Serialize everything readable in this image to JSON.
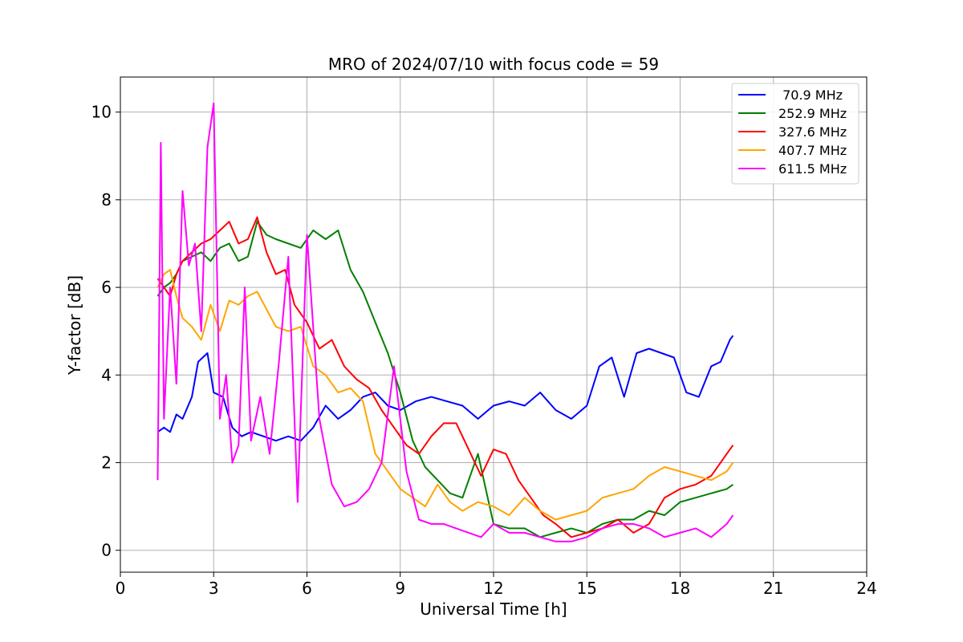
{
  "chart_data": {
    "type": "line",
    "title": "MRO of 2024/07/10 with focus code = 59",
    "xlabel": "Universal Time [h]",
    "ylabel": "Y-factor [dB]",
    "xlim": [
      0,
      24
    ],
    "ylim": [
      -0.5,
      10.8
    ],
    "xticks": [
      0,
      3,
      6,
      9,
      12,
      15,
      18,
      21,
      24
    ],
    "yticks": [
      0,
      2,
      4,
      6,
      8,
      10
    ],
    "grid": true,
    "legend": "top-right",
    "series": [
      {
        "name": " 70.9 MHz",
        "color": "#0000ff",
        "x": [
          1.2,
          1.4,
          1.6,
          1.8,
          2.0,
          2.3,
          2.5,
          2.8,
          3.0,
          3.3,
          3.6,
          3.9,
          4.2,
          4.6,
          5.0,
          5.4,
          5.8,
          6.2,
          6.6,
          7.0,
          7.4,
          7.8,
          8.2,
          8.6,
          9.0,
          9.5,
          10.0,
          10.5,
          11.0,
          11.5,
          12.0,
          12.5,
          13.0,
          13.5,
          14.0,
          14.5,
          15.0,
          15.4,
          15.8,
          16.2,
          16.6,
          17.0,
          17.4,
          17.8,
          18.2,
          18.6,
          19.0,
          19.3,
          19.6,
          19.7
        ],
        "y": [
          2.7,
          2.8,
          2.7,
          3.1,
          3.0,
          3.5,
          4.3,
          4.5,
          3.6,
          3.5,
          2.8,
          2.6,
          2.7,
          2.6,
          2.5,
          2.6,
          2.5,
          2.8,
          3.3,
          3.0,
          3.2,
          3.5,
          3.6,
          3.3,
          3.2,
          3.4,
          3.5,
          3.4,
          3.3,
          3.0,
          3.3,
          3.4,
          3.3,
          3.6,
          3.2,
          3.0,
          3.3,
          4.2,
          4.4,
          3.5,
          4.5,
          4.6,
          4.5,
          4.4,
          3.6,
          3.5,
          4.2,
          4.3,
          4.8,
          4.9
        ]
      },
      {
        "name": "252.9 MHz",
        "color": "#008000",
        "x": [
          1.2,
          1.4,
          1.6,
          1.8,
          2.0,
          2.3,
          2.6,
          2.9,
          3.2,
          3.5,
          3.8,
          4.1,
          4.4,
          4.7,
          5.0,
          5.4,
          5.8,
          6.2,
          6.6,
          7.0,
          7.4,
          7.8,
          8.2,
          8.6,
          9.0,
          9.4,
          9.8,
          10.2,
          10.6,
          11.0,
          11.5,
          12.0,
          12.5,
          13.0,
          13.5,
          14.0,
          14.5,
          15.0,
          15.5,
          16.0,
          16.5,
          17.0,
          17.5,
          18.0,
          18.5,
          19.0,
          19.5,
          19.7
        ],
        "y": [
          5.8,
          6.0,
          6.1,
          6.3,
          6.6,
          6.7,
          6.8,
          6.6,
          6.9,
          7.0,
          6.6,
          6.7,
          7.5,
          7.2,
          7.1,
          7.0,
          6.9,
          7.3,
          7.1,
          7.3,
          6.4,
          5.9,
          5.2,
          4.5,
          3.6,
          2.5,
          1.9,
          1.6,
          1.3,
          1.2,
          2.2,
          0.6,
          0.5,
          0.5,
          0.3,
          0.4,
          0.5,
          0.4,
          0.6,
          0.7,
          0.7,
          0.9,
          0.8,
          1.1,
          1.2,
          1.3,
          1.4,
          1.5
        ]
      },
      {
        "name": "327.6 MHz",
        "color": "#ff0000",
        "x": [
          1.2,
          1.4,
          1.6,
          1.8,
          2.0,
          2.3,
          2.6,
          2.9,
          3.2,
          3.5,
          3.8,
          4.1,
          4.4,
          4.7,
          5.0,
          5.3,
          5.6,
          6.0,
          6.4,
          6.8,
          7.2,
          7.6,
          8.0,
          8.4,
          8.8,
          9.2,
          9.6,
          10.0,
          10.4,
          10.8,
          11.2,
          11.6,
          12.0,
          12.4,
          12.8,
          13.2,
          13.6,
          14.0,
          14.5,
          15.0,
          15.5,
          16.0,
          16.5,
          17.0,
          17.5,
          18.0,
          18.5,
          19.0,
          19.5,
          19.7
        ],
        "y": [
          6.2,
          6.0,
          5.8,
          6.3,
          6.6,
          6.8,
          7.0,
          7.1,
          7.3,
          7.5,
          7.0,
          7.1,
          7.6,
          6.8,
          6.3,
          6.4,
          5.6,
          5.2,
          4.6,
          4.8,
          4.2,
          3.9,
          3.7,
          3.2,
          2.8,
          2.4,
          2.2,
          2.6,
          2.9,
          2.9,
          2.3,
          1.7,
          2.3,
          2.2,
          1.6,
          1.2,
          0.8,
          0.6,
          0.3,
          0.4,
          0.5,
          0.7,
          0.4,
          0.6,
          1.2,
          1.4,
          1.5,
          1.7,
          2.2,
          2.4
        ]
      },
      {
        "name": "407.7 MHz",
        "color": "#ffa500",
        "x": [
          1.2,
          1.4,
          1.6,
          1.8,
          2.0,
          2.3,
          2.6,
          2.9,
          3.2,
          3.5,
          3.8,
          4.1,
          4.4,
          4.7,
          5.0,
          5.4,
          5.8,
          6.2,
          6.6,
          7.0,
          7.4,
          7.8,
          8.2,
          8.6,
          9.0,
          9.4,
          9.8,
          10.2,
          10.6,
          11.0,
          11.5,
          12.0,
          12.5,
          13.0,
          13.5,
          14.0,
          14.5,
          15.0,
          15.5,
          16.0,
          16.5,
          17.0,
          17.5,
          18.0,
          18.5,
          19.0,
          19.5,
          19.7
        ],
        "y": [
          6.0,
          6.3,
          6.4,
          5.8,
          5.3,
          5.1,
          4.8,
          5.6,
          5.0,
          5.7,
          5.6,
          5.8,
          5.9,
          5.5,
          5.1,
          5.0,
          5.1,
          4.2,
          4.0,
          3.6,
          3.7,
          3.4,
          2.2,
          1.8,
          1.4,
          1.2,
          1.0,
          1.5,
          1.1,
          0.9,
          1.1,
          1.0,
          0.8,
          1.2,
          0.9,
          0.7,
          0.8,
          0.9,
          1.2,
          1.3,
          1.4,
          1.7,
          1.9,
          1.8,
          1.7,
          1.6,
          1.8,
          2.0
        ]
      },
      {
        "name": "611.5 MHz",
        "color": "#ff00ff",
        "x": [
          1.2,
          1.3,
          1.4,
          1.6,
          1.8,
          2.0,
          2.2,
          2.4,
          2.6,
          2.8,
          3.0,
          3.2,
          3.4,
          3.6,
          3.8,
          4.0,
          4.2,
          4.5,
          4.8,
          5.1,
          5.4,
          5.7,
          6.0,
          6.4,
          6.8,
          7.2,
          7.6,
          8.0,
          8.4,
          8.8,
          9.2,
          9.6,
          10.0,
          10.4,
          10.8,
          11.2,
          11.6,
          12.0,
          12.5,
          13.0,
          13.5,
          14.0,
          14.5,
          15.0,
          15.5,
          16.0,
          16.5,
          17.0,
          17.5,
          18.0,
          18.5,
          19.0,
          19.5,
          19.7
        ],
        "y": [
          1.6,
          9.3,
          3.0,
          6.0,
          3.8,
          8.2,
          6.5,
          7.0,
          5.0,
          9.2,
          10.2,
          3.0,
          4.0,
          2.0,
          2.4,
          6.0,
          2.5,
          3.5,
          2.2,
          4.3,
          6.7,
          1.1,
          7.2,
          3.0,
          1.5,
          1.0,
          1.1,
          1.4,
          2.0,
          4.2,
          1.8,
          0.7,
          0.6,
          0.6,
          0.5,
          0.4,
          0.3,
          0.6,
          0.4,
          0.4,
          0.3,
          0.2,
          0.2,
          0.3,
          0.5,
          0.6,
          0.6,
          0.5,
          0.3,
          0.4,
          0.5,
          0.3,
          0.6,
          0.8
        ]
      }
    ]
  }
}
